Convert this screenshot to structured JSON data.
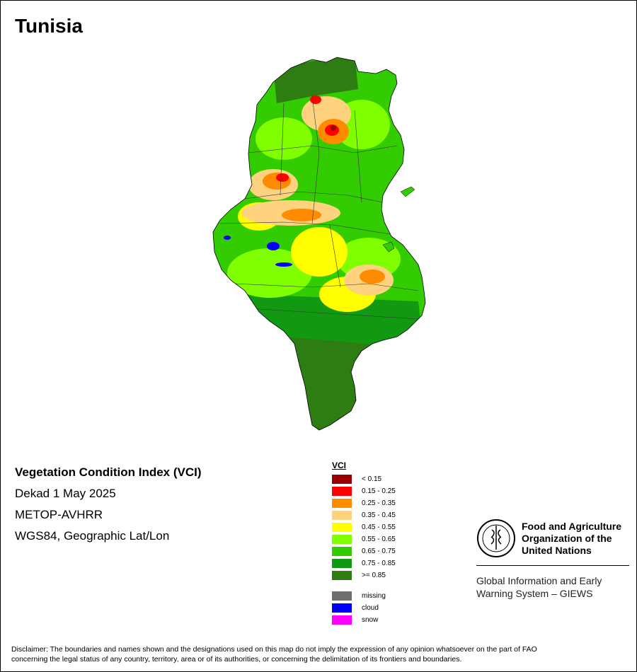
{
  "map": {
    "title": "Tunisia",
    "legend": {
      "title": "VCI",
      "classes": [
        {
          "label": "< 0.15",
          "color": "#9b0000"
        },
        {
          "label": "0.15 - 0.25",
          "color": "#ff0000"
        },
        {
          "label": "0.25 - 0.35",
          "color": "#ff8c00"
        },
        {
          "label": "0.35 - 0.45",
          "color": "#ffd27f"
        },
        {
          "label": "0.45 - 0.55",
          "color": "#ffff00"
        },
        {
          "label": "0.55 - 0.65",
          "color": "#7fff00"
        },
        {
          "label": "0.65 - 0.75",
          "color": "#33cc00"
        },
        {
          "label": "0.75 - 0.85",
          "color": "#129912"
        },
        {
          "label": ">= 0.85",
          "color": "#2e7d12"
        }
      ],
      "special": [
        {
          "label": "missing",
          "color": "#6e6e6e"
        },
        {
          "label": "cloud",
          "color": "#0000ff"
        },
        {
          "label": "snow",
          "color": "#ff00ff"
        }
      ]
    }
  },
  "info": {
    "index_name": "Vegetation Condition Index (VCI)",
    "period": "Dekad 1 May 2025",
    "sensor": "METOP-AVHRR",
    "projection": "WGS84, Geographic Lat/Lon"
  },
  "logo": {
    "org_line1": "Food and Agriculture",
    "org_line2": "Organization of the",
    "org_line3": "United Nations",
    "giews_line1": "Global Information and Early",
    "giews_line2": "Warning System – GIEWS"
  },
  "disclaimer": {
    "line1": "Disclaimer: The boundaries and names shown and the designations used on this map do not imply the expression of any opinion whatsoever on the part of FAO",
    "line2": "concerning the legal status of any country, territory, area or of its authorities, or concerning the delimitation of its frontiers and boundaries."
  }
}
